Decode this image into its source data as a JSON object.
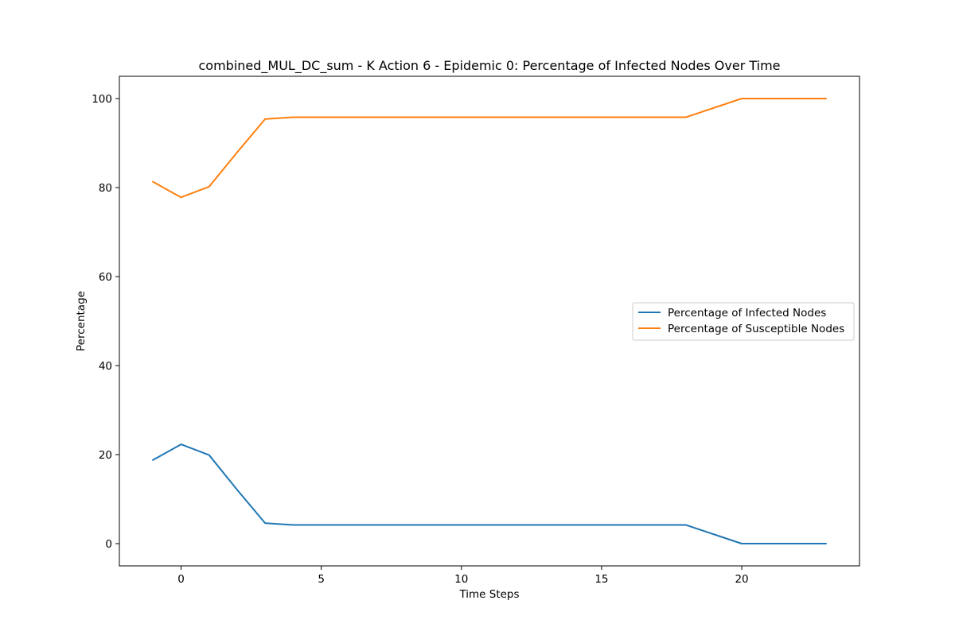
{
  "chart_data": {
    "type": "line",
    "title": "combined_MUL_DC_sum - K Action 6 - Epidemic 0: Percentage of Infected Nodes Over Time",
    "xlabel": "Time Steps",
    "ylabel": "Percentage",
    "xlim": [
      -2.2,
      24.2
    ],
    "ylim": [
      -5,
      105
    ],
    "xticks": [
      0,
      5,
      10,
      15,
      20
    ],
    "yticks": [
      0,
      20,
      40,
      60,
      80,
      100
    ],
    "grid": false,
    "legend_position": "center-right",
    "x": [
      -1,
      0,
      1,
      2,
      3,
      4,
      5,
      6,
      7,
      8,
      9,
      10,
      11,
      12,
      13,
      14,
      15,
      16,
      17,
      18,
      19,
      20,
      21,
      22,
      23
    ],
    "series": [
      {
        "name": "Percentage of Infected Nodes",
        "color": "#1f77b4",
        "values": [
          18.8,
          22.3,
          19.9,
          12.1,
          4.6,
          4.2,
          4.2,
          4.2,
          4.2,
          4.2,
          4.2,
          4.2,
          4.2,
          4.2,
          4.2,
          4.2,
          4.2,
          4.2,
          4.2,
          4.2,
          2.1,
          0,
          0,
          0,
          0
        ]
      },
      {
        "name": "Percentage of Susceptible Nodes",
        "color": "#ff7f0e",
        "values": [
          81.3,
          77.8,
          80.2,
          87.9,
          95.4,
          95.8,
          95.8,
          95.8,
          95.8,
          95.8,
          95.8,
          95.8,
          95.8,
          95.8,
          95.8,
          95.8,
          95.8,
          95.8,
          95.8,
          95.8,
          97.9,
          100,
          100,
          100,
          100
        ]
      }
    ]
  }
}
